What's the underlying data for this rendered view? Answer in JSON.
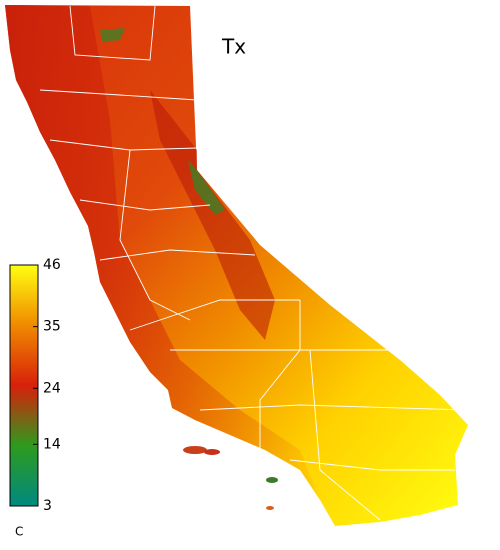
{
  "title": "Tx",
  "colorbar": {
    "ticks": [
      46,
      35,
      24,
      14,
      3
    ],
    "lim": [
      3,
      46
    ],
    "unit": "C",
    "colors": [
      "#008a80",
      "#2e9a1e",
      "#d8200a",
      "#f08a00",
      "#ffff10"
    ]
  }
}
